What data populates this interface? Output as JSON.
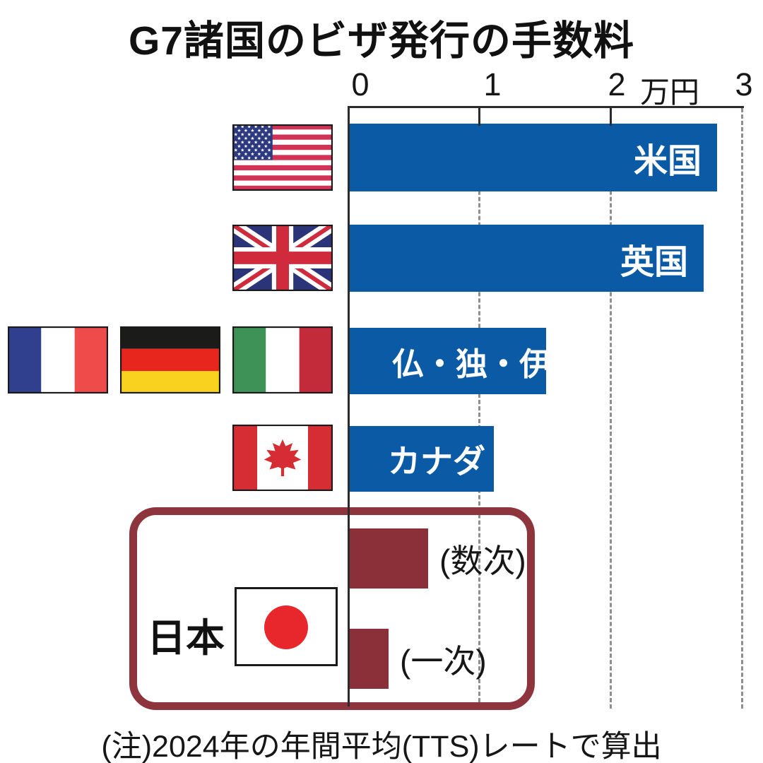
{
  "chart_data": {
    "type": "bar",
    "orientation": "horizontal",
    "title": "G7諸国のビザ発行の手数料",
    "unit_label": "万円",
    "x_ticks": [
      0,
      1,
      2,
      3
    ],
    "xlim": [
      0,
      3
    ],
    "grid": "dashed-vertical-lines",
    "legend": "none",
    "categories": [
      "米国",
      "英国",
      "仏・独・伊",
      "カナダ",
      "日本(数次)",
      "日本(一次)"
    ],
    "values": [
      2.8,
      2.7,
      1.5,
      1.1,
      0.6,
      0.3
    ],
    "group_label": "日本",
    "note": "(注)2024年の年間平均(TTS)レートで算出",
    "bars": [
      {
        "label": "米国",
        "value": 2.8,
        "color": "#0b5aa6",
        "label_color": "#ffffff",
        "label_position": "inside-right",
        "flags": [
          "us-flag"
        ]
      },
      {
        "label": "英国",
        "value": 2.7,
        "color": "#0b5aa6",
        "label_color": "#ffffff",
        "label_position": "inside-right",
        "flags": [
          "uk-flag"
        ]
      },
      {
        "label": "仏・独・伊",
        "value": 1.5,
        "color": "#0b5aa6",
        "label_color": "#ffffff",
        "label_position": "inside-left",
        "flags": [
          "france-flag",
          "germany-flag",
          "italy-flag"
        ]
      },
      {
        "label": "カナダ",
        "value": 1.1,
        "color": "#0b5aa6",
        "label_color": "#ffffff",
        "label_position": "inside-left",
        "flags": [
          "canada-flag"
        ]
      },
      {
        "label": "(数次)",
        "value": 0.6,
        "color": "#8b3038",
        "label_color": "#161616",
        "label_position": "outside-right",
        "group": "日本",
        "flags": [
          "japan-flag"
        ]
      },
      {
        "label": "(一次)",
        "value": 0.3,
        "color": "#8b3038",
        "label_color": "#161616",
        "label_position": "outside-right",
        "group": "日本",
        "flags": []
      }
    ]
  },
  "colors": {
    "bar_blue": "#0b5aa6",
    "bar_dark_red": "#8b3038",
    "japan_box_border": "#8d343d",
    "axis": "#2b2b2b",
    "gridline": "#8f8f8f",
    "background": "#ffffff",
    "text": "#161616"
  },
  "icons": [
    "us-flag",
    "uk-flag",
    "france-flag",
    "germany-flag",
    "italy-flag",
    "canada-flag",
    "japan-flag"
  ]
}
